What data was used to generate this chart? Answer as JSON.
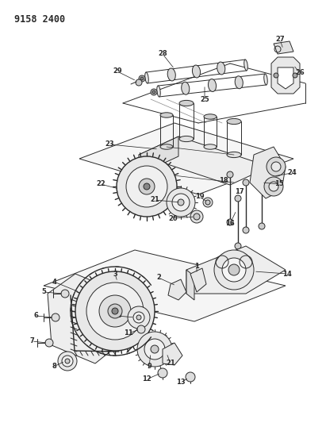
{
  "title": "9158 2400",
  "bg_color": "#ffffff",
  "fig_width": 4.11,
  "fig_height": 5.33,
  "dpi": 100,
  "line_color": "#2a2a2a",
  "label_fontsize": 6.0,
  "title_fontsize": 8.5
}
